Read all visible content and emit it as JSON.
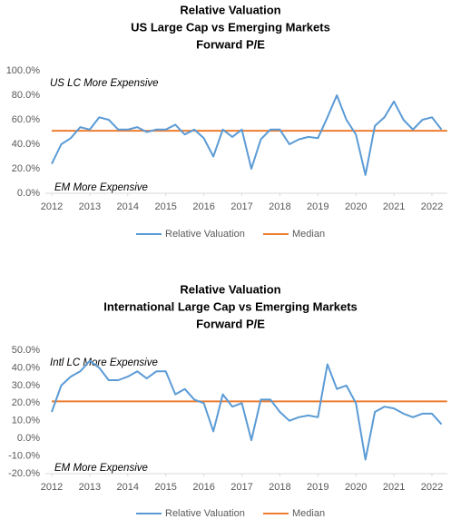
{
  "chart_data": [
    {
      "type": "line",
      "title": [
        "Relative Valuation",
        "US Large Cap vs Emerging Markets",
        "Forward P/E"
      ],
      "annotations": [
        "US LC More Expensive",
        "EM More Expensive"
      ],
      "x": [
        2012,
        2012.25,
        2012.5,
        2012.75,
        2013,
        2013.25,
        2013.5,
        2013.75,
        2014,
        2014.25,
        2014.5,
        2014.75,
        2015,
        2015.25,
        2015.5,
        2015.75,
        2016,
        2016.25,
        2016.5,
        2016.75,
        2017,
        2017.25,
        2017.5,
        2017.75,
        2018,
        2018.25,
        2018.5,
        2018.75,
        2019,
        2019.25,
        2019.5,
        2019.75,
        2020,
        2020.25,
        2020.5,
        2020.75,
        2021,
        2021.25,
        2021.5,
        2021.75,
        2022,
        2022.25
      ],
      "series": [
        {
          "name": "Relative Valuation",
          "color": "#5b9bd5",
          "values": [
            24,
            40,
            45,
            54,
            52,
            62,
            60,
            52,
            52,
            54,
            50,
            52,
            52,
            56,
            48,
            52,
            45,
            30,
            52,
            46,
            52,
            20,
            44,
            52,
            52,
            40,
            44,
            46,
            45,
            62,
            80,
            60,
            48,
            15,
            55,
            62,
            75,
            60,
            52,
            60,
            62,
            52
          ]
        }
      ],
      "median": {
        "name": "Median",
        "color": "#ed7d31",
        "value": 51
      },
      "xlim": [
        2012,
        2022.4
      ],
      "xticks": [
        2012,
        2013,
        2014,
        2015,
        2016,
        2017,
        2018,
        2019,
        2020,
        2021,
        2022
      ],
      "ylim": [
        0,
        100
      ],
      "yticks": [
        {
          "value": 0,
          "label": "0.0%"
        },
        {
          "value": 20,
          "label": "20.0%"
        },
        {
          "value": 40,
          "label": "40.0%"
        },
        {
          "value": 60,
          "label": "60.0%"
        },
        {
          "value": 80,
          "label": "80.0%"
        },
        {
          "value": 100,
          "label": "100.0%"
        }
      ]
    },
    {
      "type": "line",
      "title": [
        "Relative Valuation",
        "International Large Cap vs Emerging Markets",
        "Forward P/E"
      ],
      "annotations": [
        "Intl LC More Expensive",
        "EM More Expensive"
      ],
      "x": [
        2012,
        2012.25,
        2012.5,
        2012.75,
        2013,
        2013.25,
        2013.5,
        2013.75,
        2014,
        2014.25,
        2014.5,
        2014.75,
        2015,
        2015.25,
        2015.5,
        2015.75,
        2016,
        2016.25,
        2016.5,
        2016.75,
        2017,
        2017.25,
        2017.5,
        2017.75,
        2018,
        2018.25,
        2018.5,
        2018.75,
        2019,
        2019.25,
        2019.5,
        2019.75,
        2020,
        2020.25,
        2020.5,
        2020.75,
        2021,
        2021.25,
        2021.5,
        2021.75,
        2022,
        2022.25
      ],
      "series": [
        {
          "name": "Relative Valuation",
          "color": "#5b9bd5",
          "values": [
            15,
            30,
            35,
            38,
            44,
            40,
            33,
            33,
            35,
            38,
            34,
            38,
            38,
            25,
            28,
            22,
            20,
            4,
            25,
            18,
            20,
            -1,
            22,
            22,
            15,
            10,
            12,
            13,
            12,
            42,
            28,
            30,
            20,
            -12,
            15,
            18,
            17,
            14,
            12,
            14,
            14,
            8
          ]
        }
      ],
      "median": {
        "name": "Median",
        "color": "#ed7d31",
        "value": 21
      },
      "xlim": [
        2012,
        2022.4
      ],
      "xticks": [
        2012,
        2013,
        2014,
        2015,
        2016,
        2017,
        2018,
        2019,
        2020,
        2021,
        2022
      ],
      "ylim": [
        -20,
        50
      ],
      "yticks": [
        {
          "value": -20,
          "label": "-20.0%"
        },
        {
          "value": -10,
          "label": "-10.0%"
        },
        {
          "value": 0,
          "label": "0.0%"
        },
        {
          "value": 10,
          "label": "10.0%"
        },
        {
          "value": 20,
          "label": "20.0%"
        },
        {
          "value": 30,
          "label": "30.0%"
        },
        {
          "value": 40,
          "label": "40.0%"
        },
        {
          "value": 50,
          "label": "50.0%"
        }
      ]
    }
  ]
}
